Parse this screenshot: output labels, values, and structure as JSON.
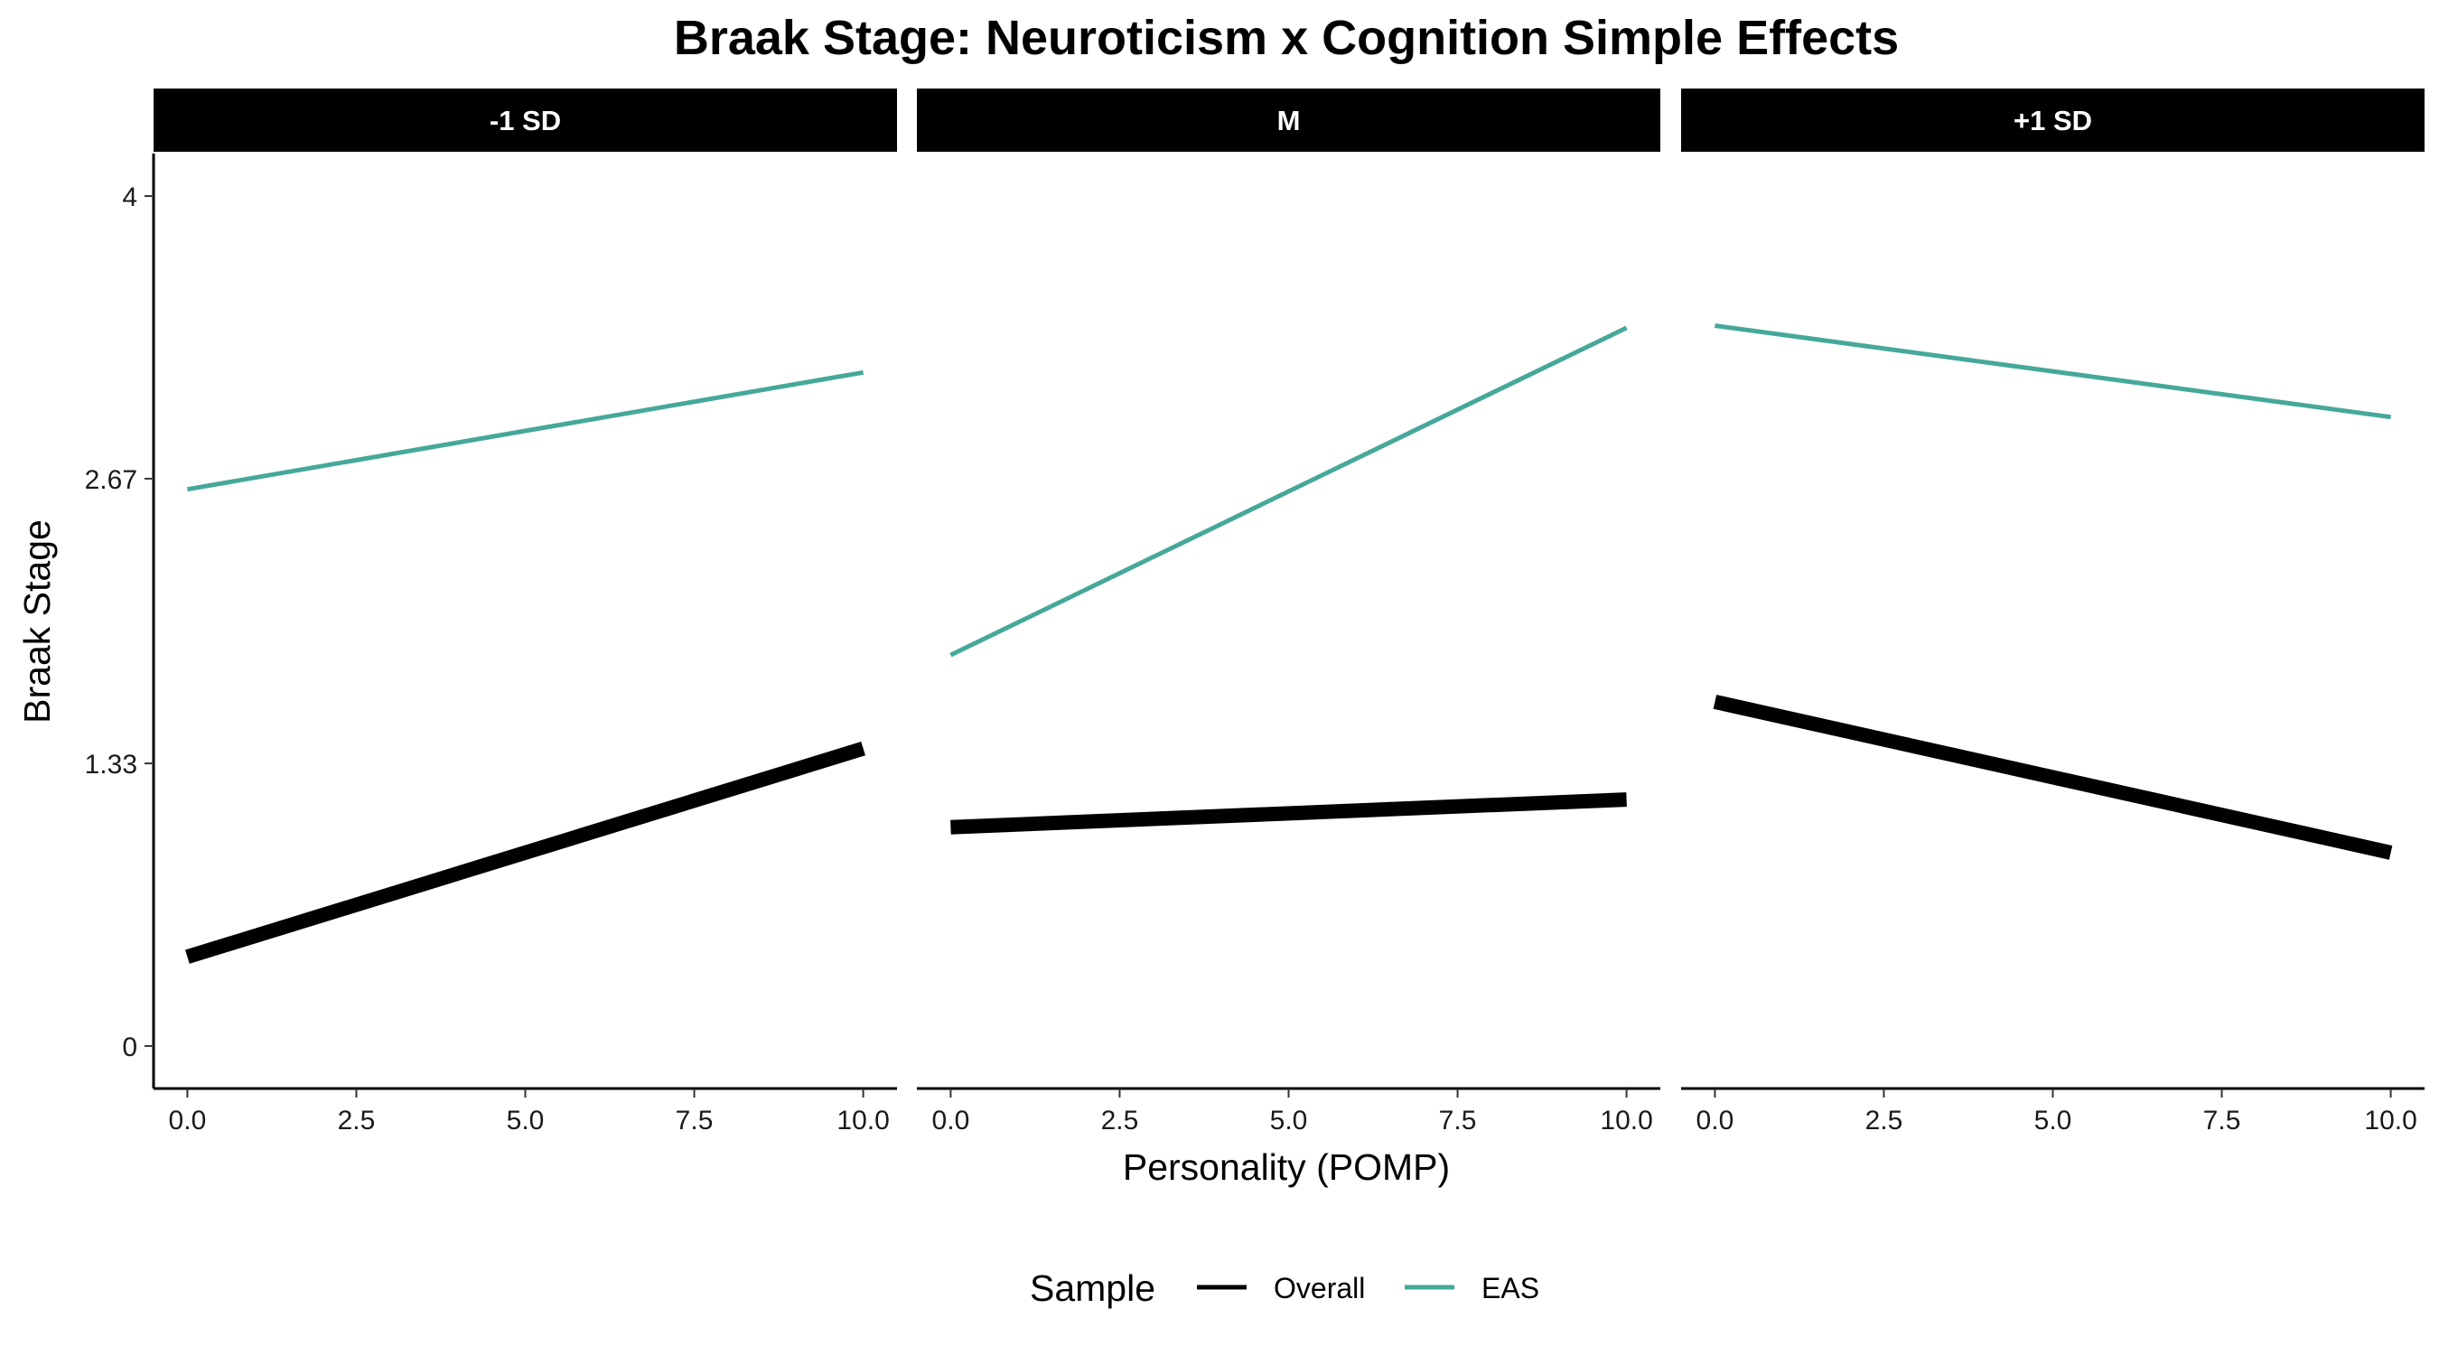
{
  "chart_data": {
    "type": "line",
    "title": "Braak Stage: Neuroticism x Cognition Simple Effects",
    "xlabel": "Personality (POMP)",
    "ylabel": "Braak Stage",
    "xlim": [
      -0.5,
      10.5
    ],
    "ylim": [
      -0.2,
      4.2
    ],
    "x_ticks": [
      0,
      2.5,
      5,
      7.5,
      10
    ],
    "x_tick_labels": [
      "0.0",
      "2.5",
      "5.0",
      "7.5",
      "10.0"
    ],
    "y_ticks": [
      0,
      1.33,
      2.67,
      4
    ],
    "y_tick_labels": [
      "0",
      "1.33",
      "2.67",
      "4"
    ],
    "grid": false,
    "legend": {
      "title": "Sample",
      "position": "bottom",
      "entries": [
        {
          "label": "Overall",
          "color": "#000000"
        },
        {
          "label": "EAS",
          "color": "#45A89A"
        }
      ]
    },
    "panels": [
      {
        "label": "-1 SD",
        "series": [
          {
            "name": "Overall",
            "x": [
              0,
              10
            ],
            "y": [
              0.42,
              1.4
            ]
          },
          {
            "name": "EAS",
            "x": [
              0,
              10
            ],
            "y": [
              2.62,
              3.17
            ]
          }
        ]
      },
      {
        "label": "M",
        "series": [
          {
            "name": "Overall",
            "x": [
              0,
              10
            ],
            "y": [
              1.03,
              1.16
            ]
          },
          {
            "name": "EAS",
            "x": [
              0,
              10
            ],
            "y": [
              1.84,
              3.38
            ]
          }
        ]
      },
      {
        "label": "+1 SD",
        "series": [
          {
            "name": "Overall",
            "x": [
              0,
              10
            ],
            "y": [
              1.62,
              0.91
            ]
          },
          {
            "name": "EAS",
            "x": [
              0,
              10
            ],
            "y": [
              3.39,
              2.96
            ]
          }
        ]
      }
    ]
  }
}
